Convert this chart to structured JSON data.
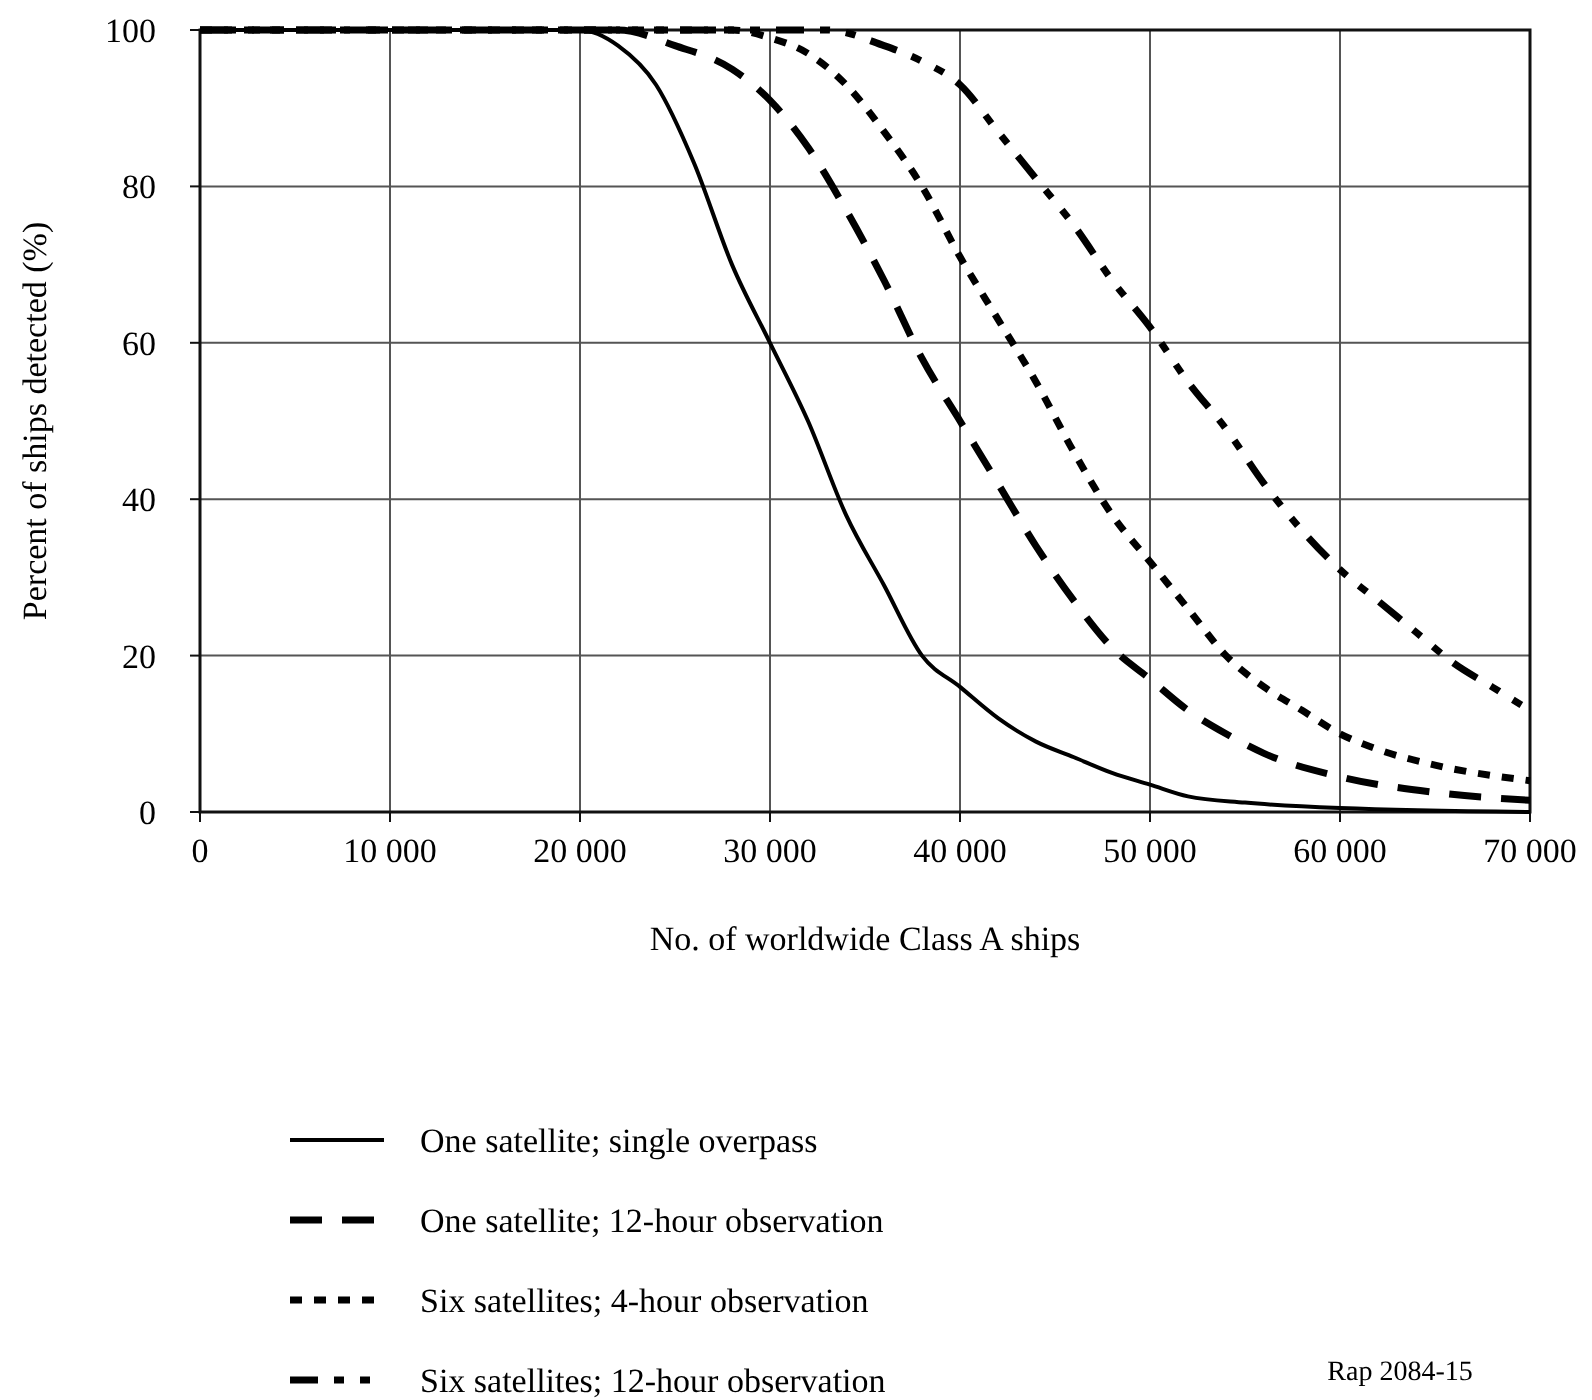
{
  "chart_data": {
    "type": "line",
    "xlabel": "No. of worldwide Class A ships",
    "ylabel": "Percent of ships detected (%)",
    "xlim": [
      0,
      70000
    ],
    "ylim": [
      0,
      100
    ],
    "xticks": [
      0,
      {
        "value": 10000,
        "label": "10 000"
      },
      {
        "value": 20000,
        "label": "20 000"
      },
      {
        "value": 30000,
        "label": "30 000"
      },
      {
        "value": 40000,
        "label": "40 000"
      },
      {
        "value": 50000,
        "label": "50 000"
      },
      {
        "value": 60000,
        "label": "60 000"
      },
      {
        "value": 70000,
        "label": "70 000"
      }
    ],
    "yticks": [
      0,
      20,
      40,
      60,
      80,
      100
    ],
    "grid": true,
    "legend": "bottom",
    "marker": "none",
    "annotations": [
      "Rap 2084-15"
    ],
    "series": [
      {
        "name": "One satellite; single overpass",
        "color": "#000000",
        "line_style": "solid",
        "x": [
          0,
          20000,
          22000,
          24000,
          26000,
          28000,
          30000,
          32000,
          34000,
          36000,
          38000,
          40000,
          42000,
          44000,
          46000,
          48000,
          50000,
          52000,
          55000,
          60000,
          70000
        ],
        "values": [
          100,
          100,
          98,
          93,
          83,
          70,
          60,
          50,
          38,
          29,
          20,
          16,
          12,
          9,
          7,
          5,
          3.5,
          2,
          1.2,
          0.5,
          0
        ]
      },
      {
        "name": "One satellite; 12-hour observation",
        "color": "#000000",
        "line_style": "dashed",
        "x": [
          0,
          22000,
          25000,
          28000,
          30000,
          32000,
          34000,
          36000,
          38000,
          40000,
          42000,
          44000,
          46000,
          48000,
          50000,
          52000,
          54000,
          56000,
          60000,
          65000,
          70000
        ],
        "values": [
          100,
          100,
          98,
          95,
          91,
          85,
          77,
          68,
          58,
          50,
          42,
          34,
          27,
          21,
          17,
          13,
          10,
          7.5,
          4.5,
          2.5,
          1.5
        ]
      },
      {
        "name": "Six satellites; 4-hour observation",
        "color": "#000000",
        "line_style": "dotted",
        "x": [
          0,
          28000,
          30000,
          32000,
          34000,
          36000,
          38000,
          40000,
          42000,
          44000,
          46000,
          48000,
          50000,
          52000,
          54000,
          56000,
          58000,
          60000,
          62000,
          65000,
          70000
        ],
        "values": [
          100,
          100,
          99,
          97,
          93,
          87,
          80,
          71,
          63,
          55,
          46,
          38,
          32,
          26,
          20,
          16,
          13,
          10,
          8,
          6,
          4
        ]
      },
      {
        "name": "Six satellites; 12-hour observation",
        "color": "#000000",
        "line_style": "dashed",
        "x": [
          0,
          33000,
          36000,
          38000,
          40000,
          42000,
          44000,
          46000,
          48000,
          50000,
          52000,
          54000,
          56000,
          58000,
          60000,
          62000,
          64000,
          66000,
          68000,
          70000
        ],
        "values": [
          100,
          100,
          98,
          96,
          93,
          87,
          81,
          75,
          68,
          62,
          55,
          49,
          42,
          36,
          31,
          27,
          23,
          19,
          16,
          13
        ]
      }
    ]
  }
}
